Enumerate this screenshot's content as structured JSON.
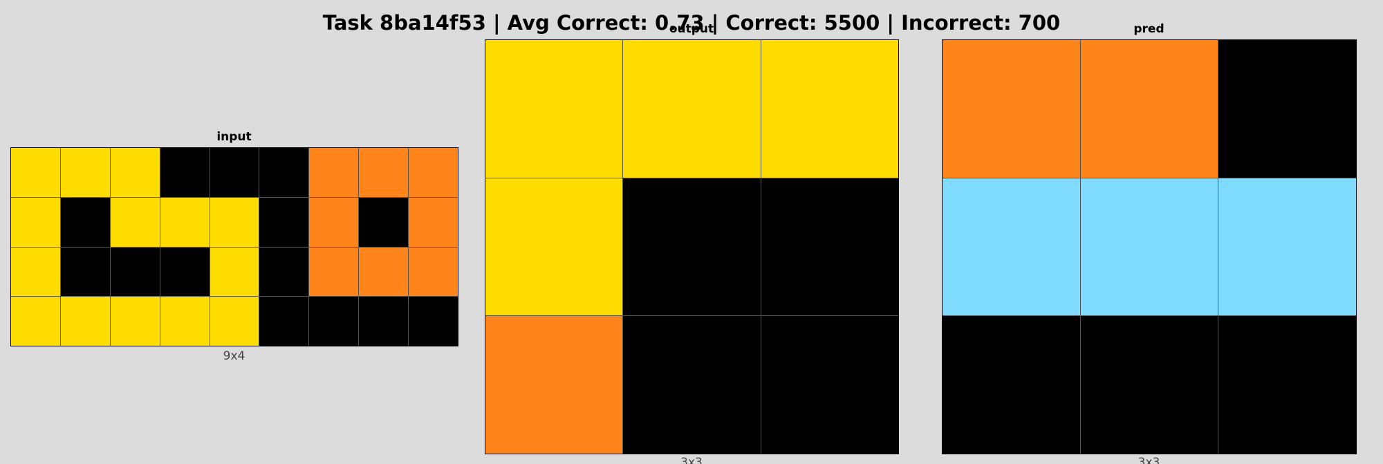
{
  "title": "Task 8ba14f53 | Avg Correct: 0.73 | Correct: 5500 | Incorrect: 700",
  "palette": {
    "0": "#000000",
    "4": "#ffdc00",
    "7": "#ff851b",
    "8": "#7fdbff"
  },
  "panels": [
    {
      "key": "input",
      "title": "input",
      "dims": "9x4",
      "grid": [
        [
          4,
          4,
          4,
          0,
          0,
          0,
          7,
          7,
          7
        ],
        [
          4,
          0,
          4,
          4,
          4,
          0,
          7,
          0,
          7
        ],
        [
          4,
          0,
          0,
          0,
          4,
          0,
          7,
          7,
          7
        ],
        [
          4,
          4,
          4,
          4,
          4,
          0,
          0,
          0,
          0
        ]
      ]
    },
    {
      "key": "output",
      "title": "output",
      "dims": "3x3",
      "grid": [
        [
          4,
          4,
          4
        ],
        [
          4,
          0,
          0
        ],
        [
          7,
          0,
          0
        ]
      ]
    },
    {
      "key": "pred",
      "title": "pred",
      "dims": "3x3",
      "grid": [
        [
          7,
          7,
          0
        ],
        [
          8,
          8,
          8
        ],
        [
          0,
          0,
          0
        ]
      ]
    }
  ]
}
